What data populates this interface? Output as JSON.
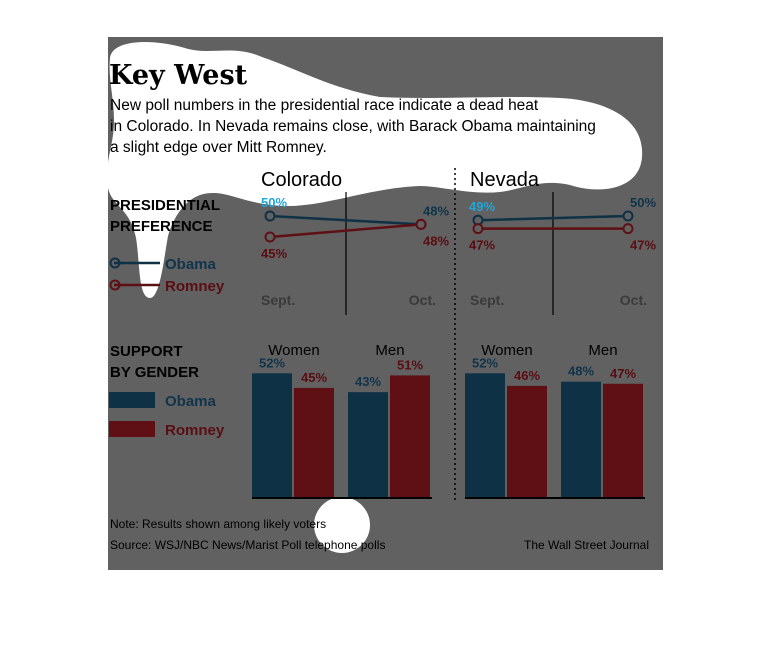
{
  "colors": {
    "obama": "#0f3145",
    "romney": "#5e1015",
    "obama_label": "#10344b",
    "romney_label": "#5a0d12",
    "obama_pct_highlight": "#1fa6d9",
    "panel_bg": "#616161",
    "highlight_blob": "#ffffff",
    "text": "#000000"
  },
  "header": {
    "title": "Key West",
    "subtitle_lines": [
      "New poll numbers in the presidential race indicate a dead heat",
      "in Colorado. In Nevada remains close, with Barack Obama maintaining",
      "a slight edge over Mitt Romney."
    ]
  },
  "legend": {
    "preference_heading": [
      "PRESIDENTIAL",
      "PREFERENCE"
    ],
    "gender_heading": [
      "SUPPORT",
      "BY GENDER"
    ],
    "obama": "Obama",
    "romney": "Romney"
  },
  "chart_data": [
    {
      "type": "line",
      "state": "Colorado",
      "x": [
        "Sept.",
        "Oct."
      ],
      "series": [
        {
          "name": "Obama",
          "values": [
            50,
            48
          ],
          "labels": [
            "50%",
            "48%"
          ]
        },
        {
          "name": "Romney",
          "values": [
            45,
            48
          ],
          "labels": [
            "45%",
            "48%"
          ]
        }
      ]
    },
    {
      "type": "line",
      "state": "Nevada",
      "x": [
        "Sept.",
        "Oct."
      ],
      "series": [
        {
          "name": "Obama",
          "values": [
            49,
            50
          ],
          "labels": [
            "49%",
            "50%"
          ]
        },
        {
          "name": "Romney",
          "values": [
            47,
            47
          ],
          "labels": [
            "47%",
            "47%"
          ]
        }
      ]
    },
    {
      "type": "bar",
      "state": "Colorado",
      "categories": [
        "Women",
        "Men"
      ],
      "series": [
        {
          "name": "Obama",
          "values": [
            52,
            43
          ],
          "labels": [
            "52%",
            "43%"
          ]
        },
        {
          "name": "Romney",
          "values": [
            45,
            51
          ],
          "labels": [
            "45%",
            "51%"
          ]
        }
      ]
    },
    {
      "type": "bar",
      "state": "Nevada",
      "categories": [
        "Women",
        "Men"
      ],
      "series": [
        {
          "name": "Obama",
          "values": [
            52,
            48
          ],
          "labels": [
            "52%",
            "48%"
          ]
        },
        {
          "name": "Romney",
          "values": [
            46,
            47
          ],
          "labels": [
            "46%",
            "47%"
          ]
        }
      ]
    }
  ],
  "footer": {
    "note": "Note: Results shown among likely voters",
    "source": "Source: WSJ/NBC News/Marist Poll telephone polls",
    "credit": "The Wall Street Journal"
  }
}
